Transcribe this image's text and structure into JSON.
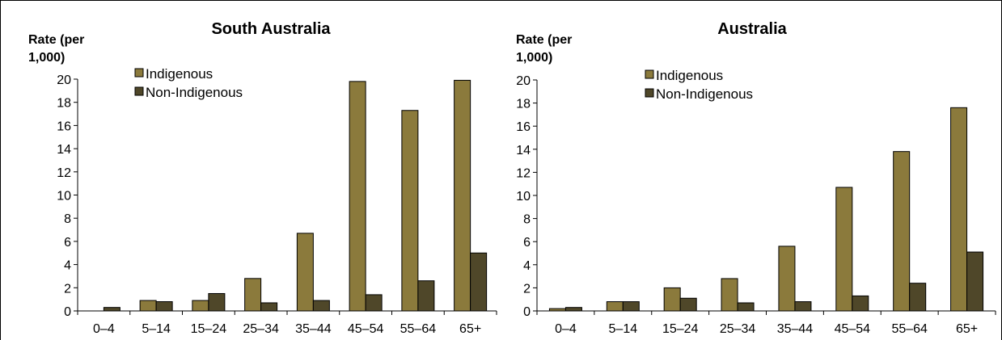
{
  "chart_data": [
    {
      "type": "bar",
      "title": "South Australia",
      "ylabel": [
        "Rate (per",
        "1,000)"
      ],
      "xlabel": "",
      "ylim": [
        0,
        20
      ],
      "yticks": [
        0,
        2,
        4,
        6,
        8,
        10,
        12,
        14,
        16,
        18,
        20
      ],
      "categories": [
        "0–4",
        "5–14",
        "15–24",
        "25–34",
        "35–44",
        "45–54",
        "55–64",
        "65+"
      ],
      "legend_position": "top-left",
      "series": [
        {
          "name": "Indigenous",
          "color": "#8B7A3C",
          "values": [
            0,
            0.9,
            0.9,
            2.8,
            6.7,
            19.8,
            17.3,
            19.9
          ]
        },
        {
          "name": "Non-Indigenous",
          "color": "#4F4729",
          "values": [
            0.3,
            0.8,
            1.5,
            0.7,
            0.9,
            1.4,
            2.6,
            5.0
          ]
        }
      ]
    },
    {
      "type": "bar",
      "title": "Australia",
      "ylabel": [
        "Rate (per",
        "1,000)"
      ],
      "xlabel": "",
      "ylim": [
        0,
        20
      ],
      "yticks": [
        0,
        2,
        4,
        6,
        8,
        10,
        12,
        14,
        16,
        18,
        20
      ],
      "categories": [
        "0–4",
        "5–14",
        "15–24",
        "25–34",
        "35–44",
        "45–54",
        "55–64",
        "65+"
      ],
      "legend_position": "top-left",
      "series": [
        {
          "name": "Indigenous",
          "color": "#8B7A3C",
          "values": [
            0.2,
            0.8,
            2.0,
            2.8,
            5.6,
            10.7,
            13.8,
            17.6
          ]
        },
        {
          "name": "Non-Indigenous",
          "color": "#4F4729",
          "values": [
            0.3,
            0.8,
            1.1,
            0.7,
            0.8,
            1.3,
            2.4,
            5.1
          ]
        }
      ]
    }
  ]
}
